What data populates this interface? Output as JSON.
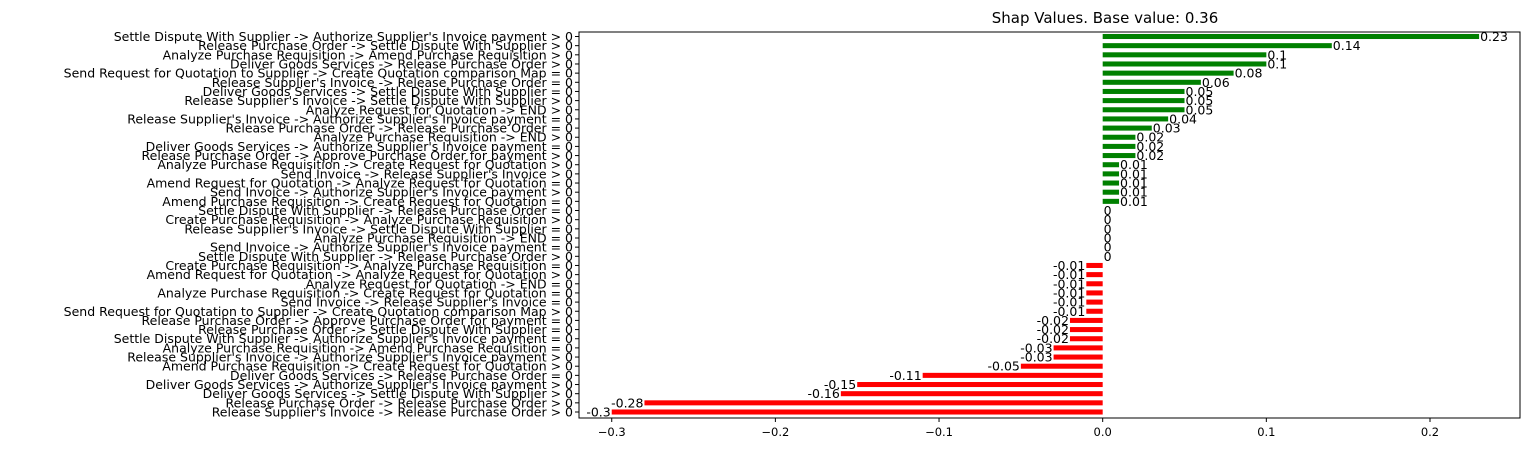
{
  "chart_data": {
    "type": "bar",
    "orientation": "horizontal",
    "title": "Shap Values. Base value: 0.36",
    "xlabel": "",
    "ylabel": "",
    "xlim": [
      -0.32,
      0.255
    ],
    "xticks": [
      -0.3,
      -0.2,
      -0.1,
      0.0,
      0.1,
      0.2
    ],
    "xtick_labels": [
      "−0.3",
      "−0.2",
      "−0.1",
      "0.0",
      "0.1",
      "0.2"
    ],
    "grid": false,
    "colors": {
      "positive": "#008000",
      "negative": "#ff0000",
      "zero": "#008000"
    },
    "categories": [
      "Settle Dispute With Supplier -> Authorize Supplier's Invoice payment > 0",
      "Release Purchase Order -> Settle Dispute With Supplier > 0",
      "Analyze Purchase Requisition -> Amend Purchase Requisition > 0",
      "Deliver Goods Services -> Release Purchase Order > 0",
      "Send Request for Quotation to Supplier -> Create Quotation comparison Map = 0",
      "Release Supplier's Invoice -> Release Purchase Order = 0",
      "Deliver Goods Services -> Settle Dispute With Supplier = 0",
      "Release Supplier's Invoice -> Settle Dispute With Supplier > 0",
      "Analyze Request for Quotation -> END > 0",
      "Release Supplier's Invoice -> Authorize Supplier's Invoice payment = 0",
      "Release Purchase Order -> Release Purchase Order = 0",
      "Analyze Purchase Requisition -> END > 0",
      "Deliver Goods Services -> Authorize Supplier's Invoice payment = 0",
      "Release Purchase Order -> Approve Purchase Order for payment > 0",
      "Analyze Purchase Requisition -> Create Request for Quotation > 0",
      "Send Invoice -> Release Supplier's Invoice > 0",
      "Amend Request for Quotation -> Analyze Request for Quotation = 0",
      "Send Invoice -> Authorize Supplier's Invoice payment > 0",
      "Amend Purchase Requisition -> Create Request for Quotation = 0",
      "Settle Dispute With Supplier -> Release Purchase Order = 0",
      "Create Purchase Requisition -> Analyze Purchase Requisition > 0",
      "Release Supplier's Invoice -> Settle Dispute With Supplier = 0",
      "Analyze Purchase Requisition -> END = 0",
      "Send Invoice -> Authorize Supplier's Invoice payment = 0",
      "Settle Dispute With Supplier -> Release Purchase Order > 0",
      "Create Purchase Requisition -> Analyze Purchase Requisition = 0",
      "Amend Request for Quotation -> Analyze Request for Quotation > 0",
      "Analyze Request for Quotation -> END = 0",
      "Analyze Purchase Requisition -> Create Request for Quotation = 0",
      "Send Invoice -> Release Supplier's Invoice = 0",
      "Send Request for Quotation to Supplier -> Create Quotation comparison Map > 0",
      "Release Purchase Order -> Approve Purchase Order for payment = 0",
      "Release Purchase Order -> Settle Dispute With Supplier = 0",
      "Settle Dispute With Supplier -> Authorize Supplier's Invoice payment = 0",
      "Analyze Purchase Requisition -> Amend Purchase Requisition = 0",
      "Release Supplier's Invoice -> Authorize Supplier's Invoice payment > 0",
      "Amend Purchase Requisition -> Create Request for Quotation > 0",
      "Deliver Goods Services -> Release Purchase Order = 0",
      "Deliver Goods Services -> Authorize Supplier's Invoice payment > 0",
      "Deliver Goods Services -> Settle Dispute With Supplier > 0",
      "Release Purchase Order -> Release Purchase Order > 0",
      "Release Supplier's Invoice -> Release Purchase Order > 0"
    ],
    "values": [
      0.23,
      0.14,
      0.1,
      0.1,
      0.08,
      0.06,
      0.05,
      0.05,
      0.05,
      0.04,
      0.03,
      0.02,
      0.02,
      0.02,
      0.01,
      0.01,
      0.01,
      0.01,
      0.01,
      0.0,
      0.0,
      0.0,
      0.0,
      0.0,
      0.0,
      -0.01,
      -0.01,
      -0.01,
      -0.01,
      -0.01,
      -0.01,
      -0.02,
      -0.02,
      -0.02,
      -0.03,
      -0.03,
      -0.05,
      -0.11,
      -0.15,
      -0.16,
      -0.28,
      -0.3
    ],
    "value_labels": [
      "0.23",
      "0.14",
      "0.1",
      "0.1",
      "0.08",
      "0.06",
      "0.05",
      "0.05",
      "0.05",
      "0.04",
      "0.03",
      "0.02",
      "0.02",
      "0.02",
      "0.01",
      "0.01",
      "0.01",
      "0.01",
      "0.01",
      "0",
      "0",
      "0",
      "0",
      "0",
      "0",
      "-0.01",
      "-0.01",
      "-0.01",
      "-0.01",
      "-0.01",
      "-0.01",
      "-0.02",
      "-0.02",
      "-0.02",
      "-0.03",
      "-0.03",
      "-0.05",
      "-0.11",
      "-0.15",
      "-0.16",
      "-0.28",
      "-0.3"
    ]
  }
}
